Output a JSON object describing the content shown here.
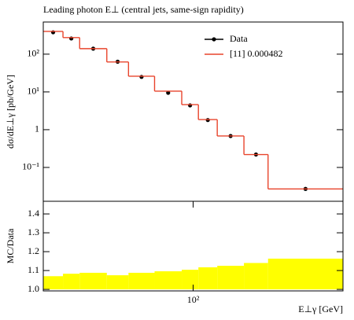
{
  "chart_data": [
    {
      "type": "histogram",
      "title": "Leading photon E⊥ (central jets, same-sign rapidity)",
      "ylabel": "dσ/dE⊥γ [pb/GeV]",
      "bins": [
        25,
        30,
        35,
        45,
        55,
        70,
        90,
        105,
        125,
        160,
        200,
        400
      ],
      "series": [
        {
          "name": "Data",
          "color": "#000000",
          "style": "points",
          "values": [
            380,
            260,
            140,
            63,
            25,
            9.5,
            4.4,
            1.8,
            0.68,
            0.22,
            0.027
          ]
        },
        {
          "name": "[11] 0.000482",
          "color": "#e8442c",
          "style": "step",
          "values": [
            400,
            275,
            140,
            62,
            26,
            10.5,
            4.6,
            1.85,
            0.68,
            0.22,
            0.027
          ]
        }
      ],
      "xlim": [
        25,
        400
      ],
      "xlog": true,
      "ylim": [
        0.0127,
        710
      ],
      "ylog": true,
      "yticks": [
        {
          "value": 0.1,
          "label": "10⁻¹"
        },
        1,
        {
          "value": 10,
          "label": "10¹"
        },
        {
          "value": 100,
          "label": "10²"
        }
      ],
      "legend": "upper right"
    },
    {
      "type": "histogram",
      "ylabel": "MC/Data",
      "xlabel": "E⊥γ [GeV]",
      "bins": [
        25,
        30,
        35,
        45,
        55,
        70,
        90,
        105,
        125,
        160,
        200,
        400
      ],
      "values": [
        1.07,
        1.083,
        1.088,
        1.075,
        1.088,
        1.096,
        1.104,
        1.117,
        1.125,
        1.14,
        1.163
      ],
      "color": "#ffff00",
      "xlim": [
        25,
        400
      ],
      "xlog": true,
      "xticks": [
        {
          "value": 100,
          "label": "10²"
        }
      ],
      "ylim": [
        0.992,
        1.467
      ],
      "yticks": [
        {
          "value": 1.0,
          "label": "1.0"
        },
        1.1,
        1.2,
        1.3,
        1.4
      ]
    }
  ]
}
